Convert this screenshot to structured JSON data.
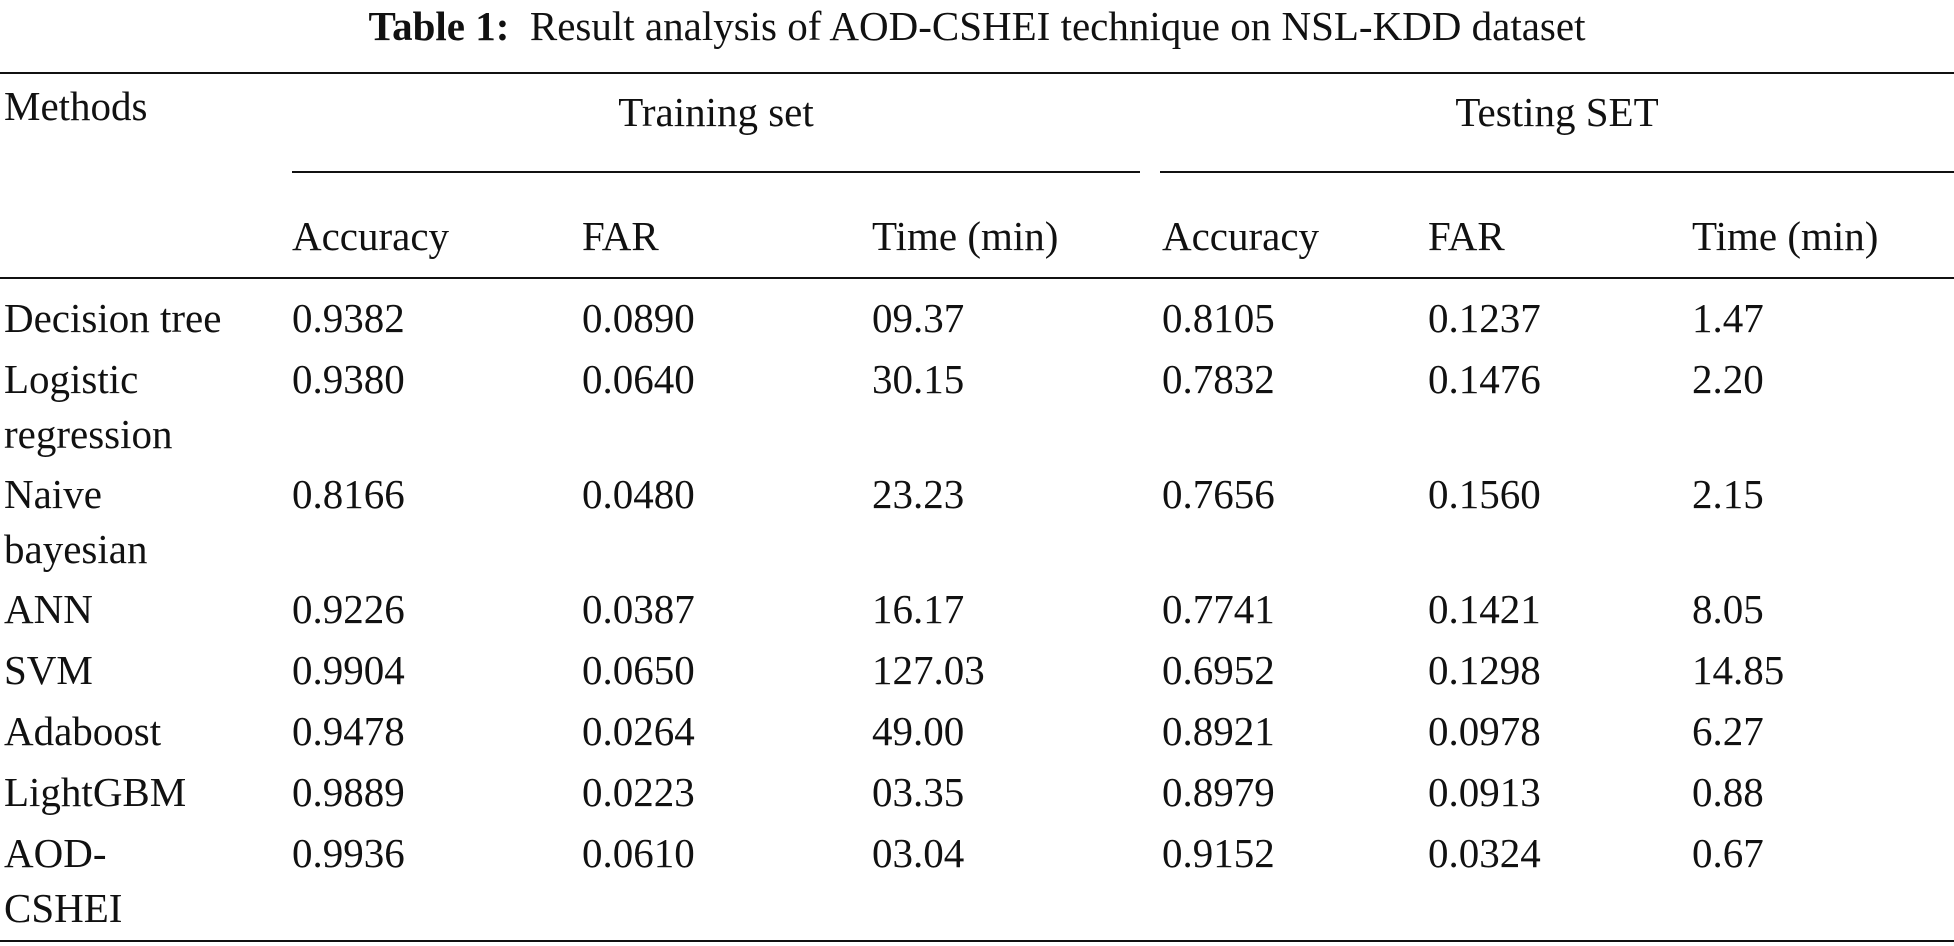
{
  "caption": {
    "label": "Table 1:",
    "text": "Result analysis of AOD-CSHEI technique on NSL-KDD dataset"
  },
  "header": {
    "methods": "Methods",
    "group_training": "Training set",
    "group_testing": "Testing SET",
    "columns": [
      "Accuracy",
      "FAR",
      "Time (min)",
      "Accuracy",
      "FAR",
      "Time (min)"
    ]
  },
  "rows": [
    {
      "method": [
        "Decision tree"
      ],
      "values": [
        "0.9382",
        "0.0890",
        "09.37",
        "0.8105",
        "0.1237",
        "1.47"
      ]
    },
    {
      "method": [
        "Logistic",
        "regression"
      ],
      "values": [
        "0.9380",
        "0.0640",
        "30.15",
        "0.7832",
        "0.1476",
        "2.20"
      ]
    },
    {
      "method": [
        "Naive",
        "bayesian"
      ],
      "values": [
        "0.8166",
        "0.0480",
        "23.23",
        "0.7656",
        "0.1560",
        "2.15"
      ]
    },
    {
      "method": [
        "ANN"
      ],
      "values": [
        "0.9226",
        "0.0387",
        "16.17",
        "0.7741",
        "0.1421",
        "8.05"
      ]
    },
    {
      "method": [
        "SVM"
      ],
      "values": [
        "0.9904",
        "0.0650",
        "127.03",
        "0.6952",
        "0.1298",
        "14.85"
      ]
    },
    {
      "method": [
        "Adaboost"
      ],
      "values": [
        "0.9478",
        "0.0264",
        "49.00",
        "0.8921",
        "0.0978",
        "6.27"
      ]
    },
    {
      "method": [
        "LightGBM"
      ],
      "values": [
        "0.9889",
        "0.0223",
        "03.35",
        "0.8979",
        "0.0913",
        "0.88"
      ]
    },
    {
      "method": [
        "AOD-",
        "CSHEI"
      ],
      "values": [
        "0.9936",
        "0.0610",
        "03.04",
        "0.9152",
        "0.0324",
        "0.67"
      ]
    }
  ]
}
